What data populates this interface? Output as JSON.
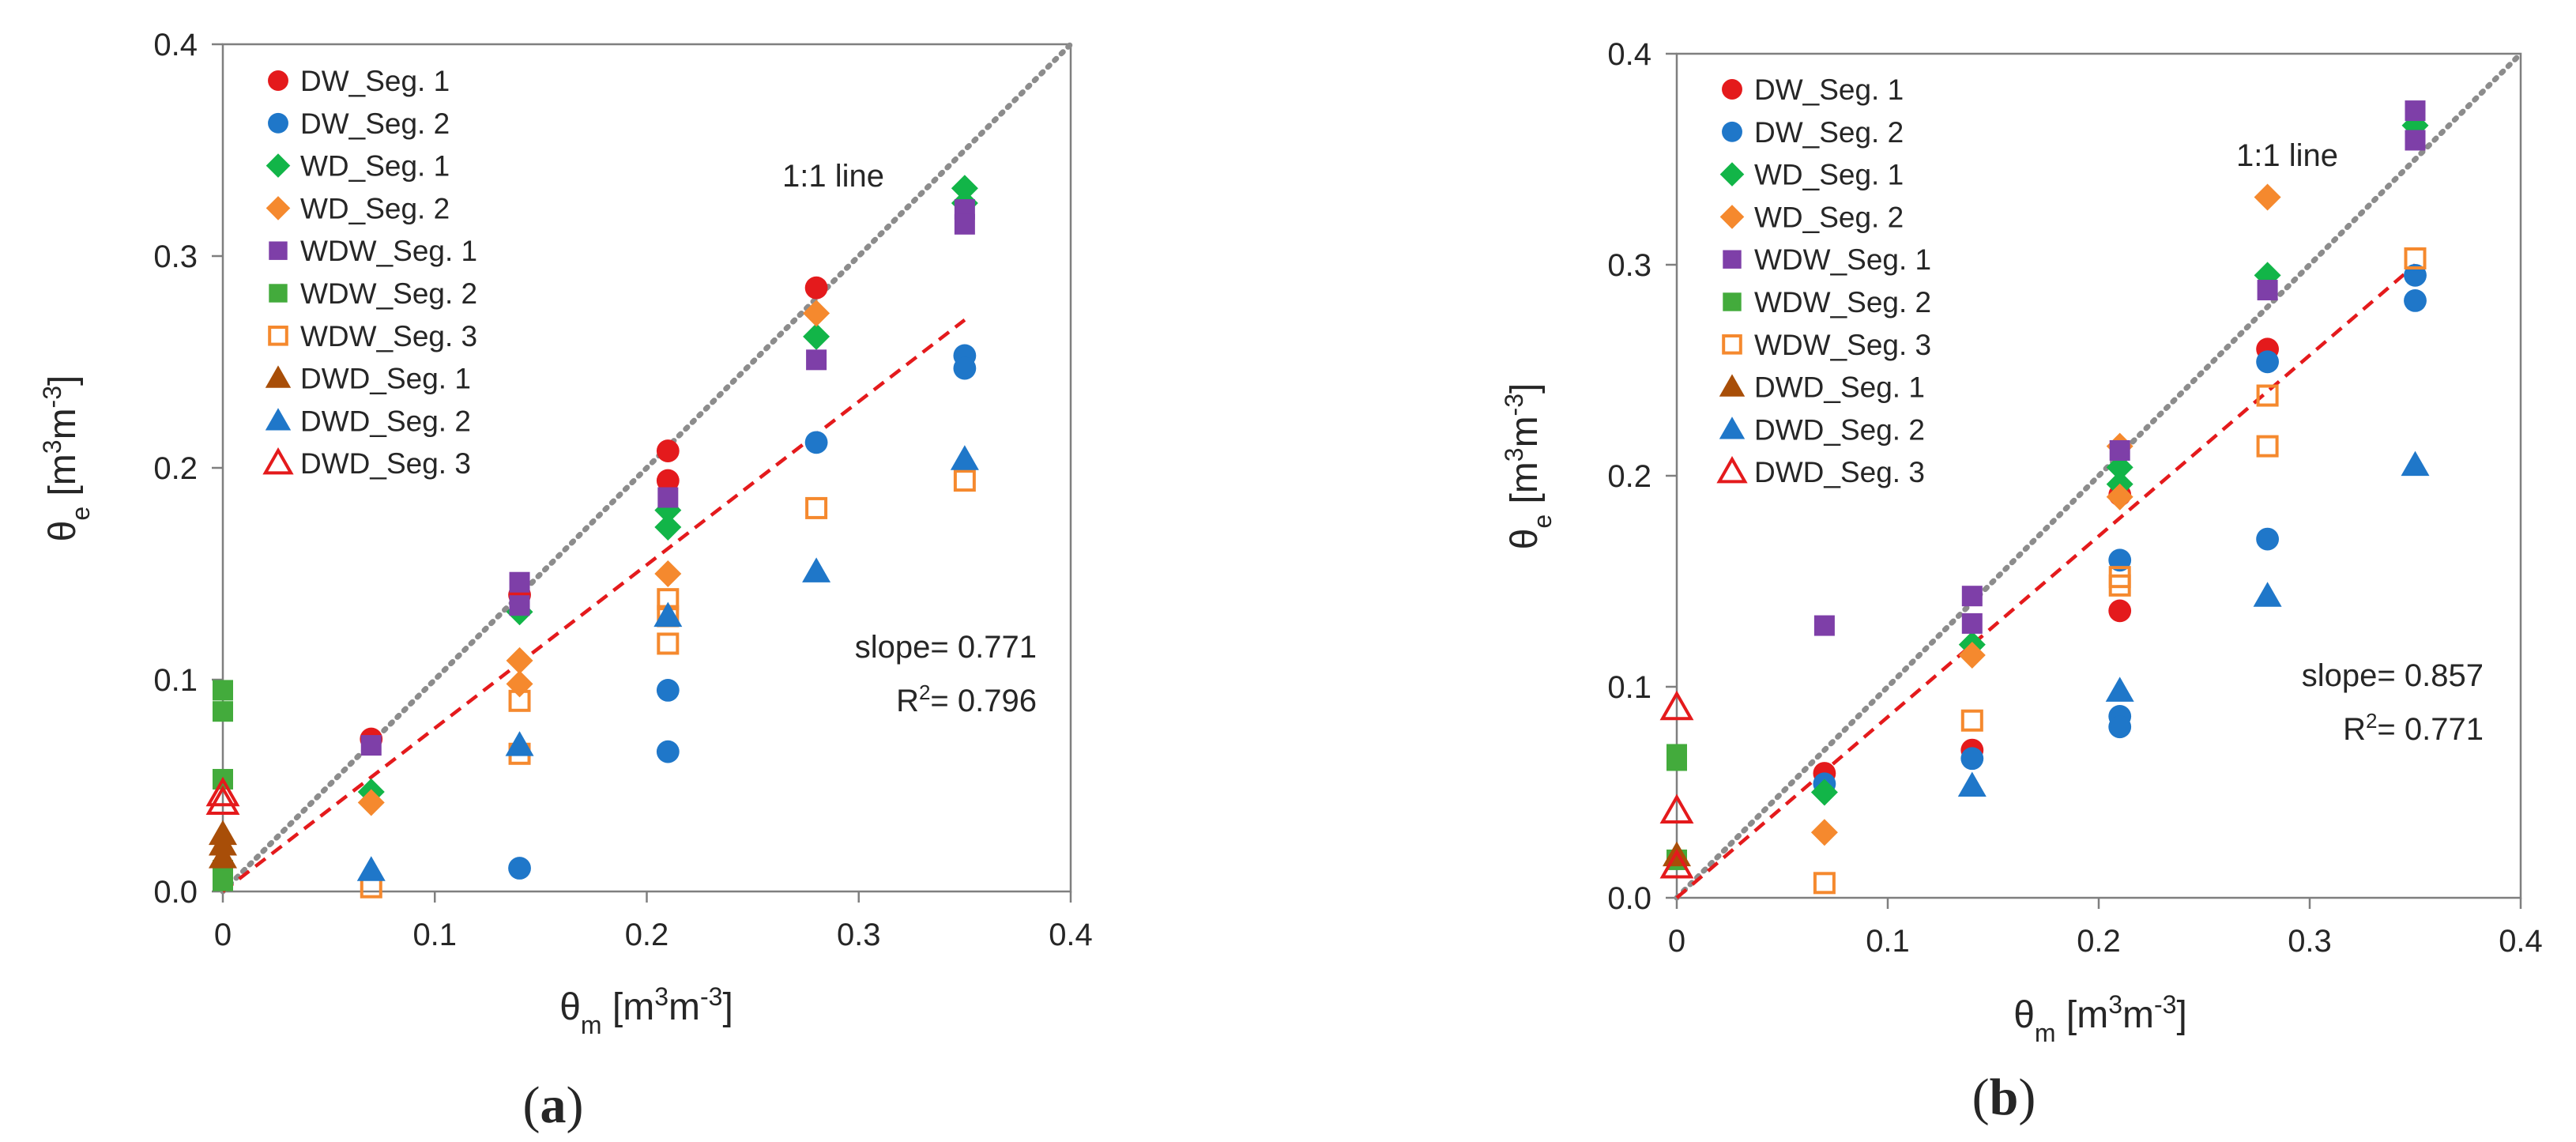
{
  "chart_data": [
    {
      "type": "scatter",
      "panel_label": "a",
      "xlabel": "θm [m3m-3]",
      "ylabel": "θe [m3m-3]",
      "xlim": [
        0,
        0.4
      ],
      "ylim": [
        0,
        0.4
      ],
      "xticks": [
        "0",
        "0.1",
        "0.2",
        "0.3",
        "0.4"
      ],
      "yticks": [
        "0.0",
        "0.1",
        "0.2",
        "0.3",
        "0.4"
      ],
      "legend_position": "top-left",
      "one_to_one_label": "1:1 line",
      "slope_text": "slope= 0.771",
      "r2_text": "R2= 0.796",
      "slope": 0.771,
      "fit_x_range": [
        0,
        0.35
      ],
      "series": [
        {
          "name": "DW_Seg. 1",
          "marker": "circle",
          "color": "#e41a1c",
          "filled": true,
          "points": [
            [
              0.07,
              0.072
            ],
            [
              0.14,
              0.14
            ],
            [
              0.21,
              0.208
            ],
            [
              0.21,
              0.194
            ],
            [
              0.28,
              0.285
            ]
          ]
        },
        {
          "name": "DW_Seg. 2",
          "marker": "circle",
          "color": "#1f77c9",
          "filled": true,
          "points": [
            [
              0.14,
              0.011
            ],
            [
              0.21,
              0.066
            ],
            [
              0.21,
              0.095
            ],
            [
              0.28,
              0.212
            ],
            [
              0.35,
              0.253
            ],
            [
              0.35,
              0.247
            ]
          ]
        },
        {
          "name": "WD_Seg. 1",
          "marker": "diamond",
          "color": "#12b548",
          "filled": true,
          "points": [
            [
              0.07,
              0.047
            ],
            [
              0.14,
              0.132
            ],
            [
              0.21,
              0.18
            ],
            [
              0.21,
              0.172
            ],
            [
              0.28,
              0.262
            ],
            [
              0.35,
              0.332
            ],
            [
              0.35,
              0.325
            ]
          ]
        },
        {
          "name": "WD_Seg. 2",
          "marker": "diamond",
          "color": "#f5892e",
          "filled": true,
          "points": [
            [
              0.07,
              0.042
            ],
            [
              0.14,
              0.109
            ],
            [
              0.14,
              0.098
            ],
            [
              0.21,
              0.15
            ],
            [
              0.28,
              0.273
            ]
          ]
        },
        {
          "name": "WDW_Seg. 1",
          "marker": "square",
          "color": "#7e3fa8",
          "filled": true,
          "points": [
            [
              0.07,
              0.069
            ],
            [
              0.14,
              0.146
            ],
            [
              0.14,
              0.135
            ],
            [
              0.21,
              0.186
            ],
            [
              0.28,
              0.251
            ],
            [
              0.35,
              0.322
            ],
            [
              0.35,
              0.315
            ]
          ]
        },
        {
          "name": "WDW_Seg. 2",
          "marker": "square",
          "color": "#43ab3c",
          "filled": true,
          "points": [
            [
              0,
              0.095
            ],
            [
              0,
              0.085
            ],
            [
              0,
              0.053
            ],
            [
              0,
              0.01
            ],
            [
              0,
              0.005
            ]
          ]
        },
        {
          "name": "WDW_Seg. 3",
          "marker": "square",
          "color": "#f5892e",
          "filled": false,
          "points": [
            [
              0.07,
              0.002
            ],
            [
              0.14,
              0.09
            ],
            [
              0.14,
              0.065
            ],
            [
              0.21,
              0.138
            ],
            [
              0.21,
              0.13
            ],
            [
              0.21,
              0.117
            ],
            [
              0.28,
              0.181
            ],
            [
              0.35,
              0.194
            ]
          ]
        },
        {
          "name": "DWD_Seg. 1",
          "marker": "triangle",
          "color": "#a84e08",
          "filled": true,
          "points": [
            [
              0,
              0.027
            ],
            [
              0,
              0.022
            ],
            [
              0,
              0.016
            ]
          ]
        },
        {
          "name": "DWD_Seg. 2",
          "marker": "triangle",
          "color": "#1f77c9",
          "filled": true,
          "points": [
            [
              0.07,
              0.01
            ],
            [
              0.14,
              0.069
            ],
            [
              0.21,
              0.13
            ],
            [
              0.28,
              0.151
            ],
            [
              0.35,
              0.204
            ]
          ]
        },
        {
          "name": "DWD_Seg. 3",
          "marker": "triangle",
          "color": "#e41a1c",
          "filled": false,
          "points": [
            [
              0,
              0.046
            ],
            [
              0,
              0.042
            ]
          ]
        }
      ]
    },
    {
      "type": "scatter",
      "panel_label": "b",
      "xlabel": "θm [m3m-3]",
      "ylabel": "θe [m3m-3]",
      "xlim": [
        0,
        0.4
      ],
      "ylim": [
        0,
        0.4
      ],
      "xticks": [
        "0",
        "0.1",
        "0.2",
        "0.3",
        "0.4"
      ],
      "yticks": [
        "0.0",
        "0.1",
        "0.2",
        "0.3",
        "0.4"
      ],
      "legend_position": "top-left",
      "one_to_one_label": "1:1 line",
      "slope_text": "slope= 0.857",
      "r2_text": "R2= 0.771",
      "slope": 0.857,
      "fit_x_range": [
        0,
        0.35
      ],
      "series": [
        {
          "name": "DW_Seg. 1",
          "marker": "circle",
          "color": "#e41a1c",
          "filled": true,
          "points": [
            [
              0.07,
              0.059
            ],
            [
              0.14,
              0.07
            ],
            [
              0.21,
              0.136
            ],
            [
              0.21,
              0.191
            ],
            [
              0.28,
              0.26
            ]
          ]
        },
        {
          "name": "DW_Seg. 2",
          "marker": "circle",
          "color": "#1f77c9",
          "filled": true,
          "points": [
            [
              0.07,
              0.054
            ],
            [
              0.14,
              0.066
            ],
            [
              0.21,
              0.16
            ],
            [
              0.21,
              0.086
            ],
            [
              0.21,
              0.081
            ],
            [
              0.28,
              0.254
            ],
            [
              0.28,
              0.17
            ],
            [
              0.35,
              0.295
            ],
            [
              0.35,
              0.283
            ]
          ]
        },
        {
          "name": "WD_Seg. 1",
          "marker": "diamond",
          "color": "#12b548",
          "filled": true,
          "points": [
            [
              0.07,
              0.05
            ],
            [
              0.14,
              0.12
            ],
            [
              0.21,
              0.204
            ],
            [
              0.21,
              0.196
            ],
            [
              0.28,
              0.295
            ],
            [
              0.35,
              0.366
            ]
          ]
        },
        {
          "name": "WD_Seg. 2",
          "marker": "diamond",
          "color": "#f5892e",
          "filled": true,
          "points": [
            [
              0.07,
              0.031
            ],
            [
              0.14,
              0.115
            ],
            [
              0.21,
              0.214
            ],
            [
              0.21,
              0.19
            ],
            [
              0.28,
              0.332
            ]
          ]
        },
        {
          "name": "WDW_Seg. 1",
          "marker": "square",
          "color": "#7e3fa8",
          "filled": true,
          "points": [
            [
              0.07,
              0.129
            ],
            [
              0.14,
              0.143
            ],
            [
              0.14,
              0.13
            ],
            [
              0.21,
              0.212
            ],
            [
              0.28,
              0.288
            ],
            [
              0.35,
              0.373
            ],
            [
              0.35,
              0.359
            ]
          ]
        },
        {
          "name": "WDW_Seg. 2",
          "marker": "square",
          "color": "#43ab3c",
          "filled": true,
          "points": [
            [
              0,
              0.068
            ],
            [
              0,
              0.065
            ],
            [
              0,
              0.018
            ]
          ]
        },
        {
          "name": "WDW_Seg. 3",
          "marker": "square",
          "color": "#f5892e",
          "filled": false,
          "points": [
            [
              0.07,
              0.007
            ],
            [
              0.14,
              0.084
            ],
            [
              0.21,
              0.152
            ],
            [
              0.21,
              0.148
            ],
            [
              0.28,
              0.238
            ],
            [
              0.28,
              0.214
            ],
            [
              0.35,
              0.303
            ]
          ]
        },
        {
          "name": "DWD_Seg. 1",
          "marker": "triangle",
          "color": "#a84e08",
          "filled": true,
          "points": [
            [
              0,
              0.02
            ]
          ]
        },
        {
          "name": "DWD_Seg. 2",
          "marker": "triangle",
          "color": "#1f77c9",
          "filled": true,
          "points": [
            [
              0.14,
              0.053
            ],
            [
              0.21,
              0.098
            ],
            [
              0.28,
              0.143
            ],
            [
              0.35,
              0.205
            ]
          ]
        },
        {
          "name": "DWD_Seg. 3",
          "marker": "triangle",
          "color": "#e41a1c",
          "filled": false,
          "points": [
            [
              0,
              0.09
            ],
            [
              0,
              0.041
            ],
            [
              0,
              0.015
            ]
          ]
        }
      ]
    }
  ]
}
